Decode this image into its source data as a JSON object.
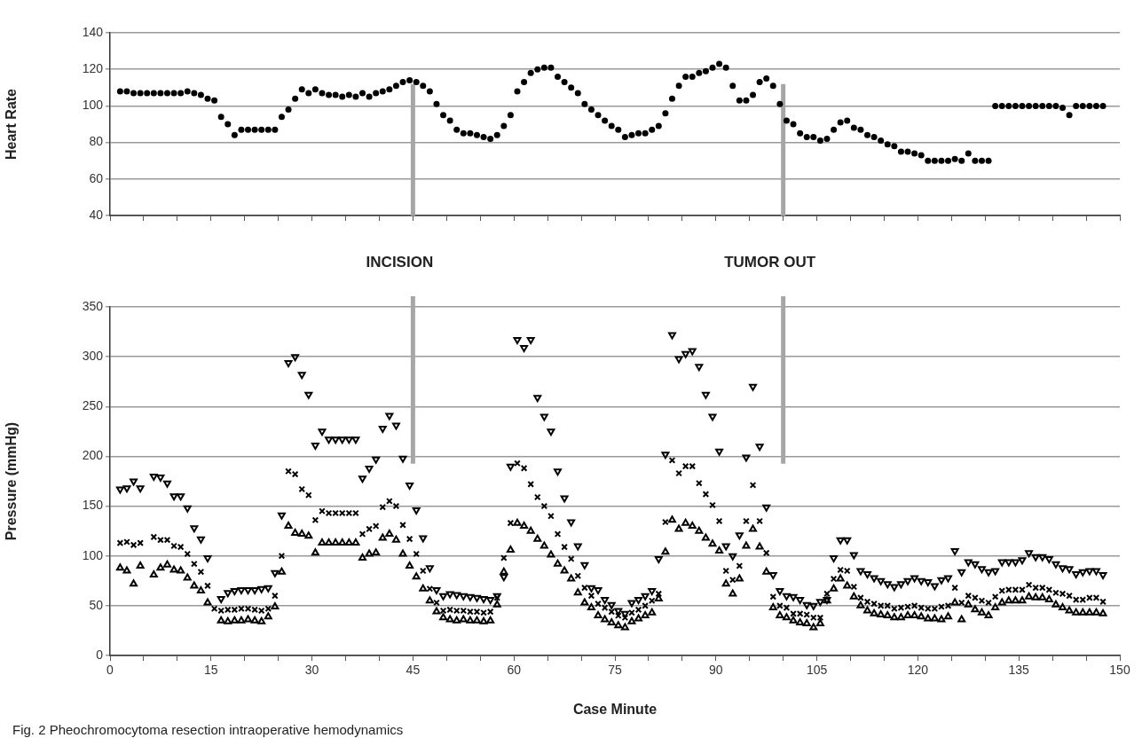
{
  "chart_data": [
    {
      "type": "scatter",
      "ylabel": "Heart Rate",
      "grid": "y",
      "tick_labels": "y",
      "xlim": [
        0,
        150
      ],
      "xticks": [
        0,
        {
          "value": 5,
          "label": null
        },
        {
          "value": 10,
          "label": null
        },
        15,
        {
          "value": 20,
          "label": null
        },
        {
          "value": 25,
          "label": null
        },
        30,
        {
          "value": 35,
          "label": null
        },
        {
          "value": 40,
          "label": null
        },
        45,
        {
          "value": 50,
          "label": null
        },
        {
          "value": 55,
          "label": null
        },
        60,
        {
          "value": 65,
          "label": null
        },
        {
          "value": 70,
          "label": null
        },
        75,
        {
          "value": 80,
          "label": null
        },
        {
          "value": 85,
          "label": null
        },
        90,
        {
          "value": 95,
          "label": null
        },
        {
          "value": 100,
          "label": null
        },
        105,
        {
          "value": 110,
          "label": null
        },
        {
          "value": 115,
          "label": null
        },
        120,
        {
          "value": 125,
          "label": null
        },
        {
          "value": 130,
          "label": null
        },
        135,
        {
          "value": 140,
          "label": null
        },
        {
          "value": 145,
          "label": null
        },
        150
      ],
      "ylim": [
        40,
        140
      ],
      "yticks": [
        40,
        60,
        80,
        100,
        120,
        140
      ],
      "x": [
        1.5,
        2.5,
        3.5,
        4.5,
        5.5,
        6.5,
        7.5,
        8.5,
        9.5,
        10.5,
        11.5,
        12.5,
        13.5,
        14.5,
        15.5,
        16.5,
        17.5,
        18.5,
        19.5,
        20.5,
        21.5,
        22.5,
        23.5,
        24.5,
        25.5,
        26.5,
        27.5,
        28.5,
        29.5,
        30.5,
        31.5,
        32.5,
        33.5,
        34.5,
        35.5,
        36.5,
        37.5,
        38.5,
        39.5,
        40.5,
        41.5,
        42.5,
        43.5,
        44.5,
        45.5,
        46.5,
        47.5,
        48.5,
        49.5,
        50.5,
        51.5,
        52.5,
        53.5,
        54.5,
        55.5,
        56.5,
        57.5,
        58.5,
        59.5,
        60.5,
        61.5,
        62.5,
        63.5,
        64.5,
        65.5,
        66.5,
        67.5,
        68.5,
        69.5,
        70.5,
        71.5,
        72.5,
        73.5,
        74.5,
        75.5,
        76.5,
        77.5,
        78.5,
        79.5,
        80.5,
        81.5,
        82.5,
        83.5,
        84.5,
        85.5,
        86.5,
        87.5,
        88.5,
        89.5,
        90.5,
        91.5,
        92.5,
        93.5,
        94.5,
        95.5,
        96.5,
        97.5,
        98.5,
        99.5,
        100.5,
        101.5,
        102.5,
        103.5,
        104.5,
        105.5,
        106.5,
        107.5,
        108.5,
        109.5,
        110.5,
        111.5,
        112.5,
        113.5,
        114.5,
        115.5,
        116.5,
        117.5,
        118.5,
        119.5,
        120.5,
        121.5,
        122.5,
        123.5,
        124.5,
        125.5,
        126.5,
        127.5,
        128.5,
        129.5,
        130.5,
        131.5,
        132.5,
        133.5,
        134.5,
        135.5,
        136.5,
        137.5,
        138.5,
        139.5,
        140.5,
        141.5,
        142.5,
        143.5,
        144.5,
        145.5,
        146.5,
        147.5
      ],
      "series": [
        {
          "color": "#000000",
          "marker": "circle",
          "values": [
            108,
            108,
            107,
            107,
            107,
            107,
            107,
            107,
            107,
            107,
            108,
            107,
            106,
            104,
            103,
            94,
            90,
            84,
            87,
            87,
            87,
            87,
            87,
            87,
            94,
            98,
            104,
            109,
            107,
            109,
            107,
            106,
            106,
            105,
            106,
            105,
            107,
            105,
            107,
            108,
            109,
            111,
            113,
            114,
            113,
            111,
            108,
            101,
            95,
            92,
            87,
            85,
            85,
            84,
            83,
            82,
            84,
            89,
            95,
            108,
            113,
            118,
            120,
            121,
            121,
            116,
            113,
            110,
            107,
            101,
            98,
            95,
            92,
            89,
            87,
            83,
            84,
            85,
            85,
            87,
            89,
            96,
            104,
            111,
            116,
            116,
            118,
            119,
            121,
            123,
            121,
            111,
            103,
            103,
            106,
            113,
            115,
            111,
            101,
            92,
            90,
            85,
            83,
            83,
            81,
            82,
            87,
            91,
            92,
            88,
            87,
            84,
            83,
            81,
            79,
            78,
            75,
            75,
            74,
            73,
            70,
            70,
            70,
            70,
            71,
            70,
            74,
            70,
            70,
            70,
            100,
            100,
            100,
            100,
            100,
            100,
            100,
            100,
            100,
            100,
            99,
            95,
            100,
            100,
            100,
            100,
            100
          ]
        }
      ],
      "ref_lines": [
        {
          "axis": "x",
          "value": 45,
          "color": "#a6a6a6"
        },
        {
          "axis": "x",
          "value": 100,
          "color": "#a6a6a6"
        }
      ]
    },
    {
      "type": "scatter",
      "xlabel": "Case Minute",
      "ylabel": "Pressure (mmHg)",
      "grid": "y",
      "xlim": [
        0,
        150
      ],
      "xticks": [
        0,
        {
          "value": 5,
          "label": null
        },
        {
          "value": 10,
          "label": null
        },
        15,
        {
          "value": 20,
          "label": null
        },
        {
          "value": 25,
          "label": null
        },
        30,
        {
          "value": 35,
          "label": null
        },
        {
          "value": 40,
          "label": null
        },
        45,
        {
          "value": 50,
          "label": null
        },
        {
          "value": 55,
          "label": null
        },
        60,
        {
          "value": 65,
          "label": null
        },
        {
          "value": 70,
          "label": null
        },
        75,
        {
          "value": 80,
          "label": null
        },
        {
          "value": 85,
          "label": null
        },
        90,
        {
          "value": 95,
          "label": null
        },
        {
          "value": 100,
          "label": null
        },
        105,
        {
          "value": 110,
          "label": null
        },
        {
          "value": 115,
          "label": null
        },
        120,
        {
          "value": 125,
          "label": null
        },
        {
          "value": 130,
          "label": null
        },
        135,
        {
          "value": 140,
          "label": null
        },
        {
          "value": 145,
          "label": null
        },
        150
      ],
      "ylim": [
        0,
        350
      ],
      "yticks": [
        0,
        50,
        100,
        150,
        200,
        250,
        300,
        350
      ],
      "x": [
        1.5,
        2.5,
        3.5,
        4.5,
        5.5,
        6.5,
        7.5,
        8.5,
        9.5,
        10.5,
        11.5,
        12.5,
        13.5,
        14.5,
        15.5,
        16.5,
        17.5,
        18.5,
        19.5,
        20.5,
        21.5,
        22.5,
        23.5,
        24.5,
        25.5,
        26.5,
        27.5,
        28.5,
        29.5,
        30.5,
        31.5,
        32.5,
        33.5,
        34.5,
        35.5,
        36.5,
        37.5,
        38.5,
        39.5,
        40.5,
        41.5,
        42.5,
        43.5,
        44.5,
        45.5,
        46.5,
        47.5,
        48.5,
        49.5,
        50.5,
        51.5,
        52.5,
        53.5,
        54.5,
        55.5,
        56.5,
        57.5,
        58.5,
        59.5,
        60.5,
        61.5,
        62.5,
        63.5,
        64.5,
        65.5,
        66.5,
        67.5,
        68.5,
        69.5,
        70.5,
        71.5,
        72.5,
        73.5,
        74.5,
        75.5,
        76.5,
        77.5,
        78.5,
        79.5,
        80.5,
        81.5,
        82.5,
        83.5,
        84.5,
        85.5,
        86.5,
        87.5,
        88.5,
        89.5,
        90.5,
        91.5,
        92.5,
        93.5,
        94.5,
        95.5,
        96.5,
        97.5,
        98.5,
        99.5,
        100.5,
        101.5,
        102.5,
        103.5,
        104.5,
        105.5,
        106.5,
        107.5,
        108.5,
        109.5,
        110.5,
        111.5,
        112.5,
        113.5,
        114.5,
        115.5,
        116.5,
        117.5,
        118.5,
        119.5,
        120.5,
        121.5,
        122.5,
        123.5,
        124.5,
        125.5,
        126.5,
        127.5,
        128.5,
        129.5,
        130.5,
        131.5,
        132.5,
        133.5,
        134.5,
        135.5,
        136.5,
        137.5,
        138.5,
        139.5,
        140.5,
        141.5,
        142.5,
        143.5,
        144.5,
        145.5,
        146.5,
        147.5
      ],
      "series": [
        {
          "color": "#000000",
          "marker": "triangle-down",
          "values": [
            167,
            168,
            175,
            168,
            null,
            180,
            179,
            173,
            160,
            160,
            148,
            128,
            117,
            98,
            null,
            57,
            63,
            65,
            66,
            66,
            66,
            67,
            68,
            83,
            141,
            294,
            300,
            282,
            262,
            211,
            225,
            217,
            217,
            217,
            217,
            217,
            178,
            188,
            197,
            228,
            241,
            231,
            198,
            171,
            146,
            118,
            88,
            66,
            60,
            62,
            61,
            60,
            59,
            58,
            57,
            56,
            60,
            79,
            190,
            317,
            309,
            317,
            259,
            240,
            225,
            185,
            158,
            134,
            110,
            91,
            68,
            66,
            56,
            51,
            45,
            42,
            53,
            56,
            60,
            65,
            97,
            202,
            322,
            298,
            303,
            306,
            290,
            262,
            240,
            205,
            110,
            100,
            121,
            199,
            270,
            210,
            149,
            81,
            65,
            60,
            59,
            56,
            51,
            50,
            54,
            56,
            98,
            116,
            116,
            101,
            85,
            82,
            78,
            75,
            72,
            69,
            72,
            75,
            78,
            75,
            74,
            70,
            76,
            78,
            105,
            84,
            94,
            92,
            87,
            84,
            85,
            94,
            94,
            94,
            96,
            103,
            99,
            99,
            97,
            92,
            88,
            87,
            82,
            84,
            85,
            85,
            81
          ]
        },
        {
          "color": "#000000",
          "marker": "cross",
          "values": [
            113,
            114,
            111,
            113,
            null,
            119,
            116,
            116,
            110,
            109,
            102,
            92,
            84,
            70,
            47,
            45,
            46,
            46,
            47,
            47,
            46,
            45,
            47,
            60,
            100,
            185,
            182,
            167,
            161,
            136,
            145,
            143,
            143,
            143,
            143,
            143,
            122,
            127,
            130,
            149,
            155,
            150,
            131,
            117,
            102,
            85,
            67,
            53,
            45,
            46,
            45,
            45,
            44,
            44,
            43,
            44,
            58,
            98,
            133,
            193,
            188,
            172,
            159,
            150,
            140,
            122,
            109,
            97,
            80,
            68,
            60,
            52,
            48,
            44,
            40,
            38,
            43,
            46,
            50,
            55,
            62,
            134,
            196,
            183,
            190,
            190,
            173,
            162,
            151,
            135,
            85,
            76,
            90,
            135,
            171,
            135,
            103,
            59,
            50,
            48,
            42,
            42,
            41,
            38,
            38,
            62,
            77,
            86,
            85,
            69,
            58,
            54,
            52,
            50,
            50,
            47,
            48,
            49,
            50,
            48,
            47,
            47,
            49,
            50,
            68,
            53,
            60,
            58,
            55,
            53,
            59,
            65,
            66,
            66,
            66,
            71,
            68,
            68,
            66,
            63,
            62,
            60,
            56,
            56,
            58,
            58,
            54
          ]
        },
        {
          "color": "#000000",
          "marker": "triangle",
          "values": [
            88,
            85,
            72,
            90,
            null,
            81,
            88,
            91,
            86,
            85,
            78,
            70,
            65,
            53,
            null,
            35,
            34,
            35,
            35,
            36,
            35,
            34,
            39,
            49,
            84,
            130,
            123,
            122,
            120,
            103,
            113,
            113,
            113,
            113,
            113,
            113,
            98,
            102,
            103,
            118,
            122,
            116,
            102,
            90,
            79,
            67,
            55,
            44,
            38,
            36,
            35,
            36,
            35,
            35,
            34,
            35,
            51,
            84,
            106,
            133,
            130,
            125,
            117,
            110,
            101,
            92,
            85,
            77,
            63,
            53,
            48,
            40,
            36,
            33,
            30,
            28,
            34,
            37,
            40,
            43,
            57,
            104,
            136,
            127,
            133,
            130,
            125,
            118,
            112,
            105,
            72,
            62,
            77,
            110,
            127,
            109,
            84,
            48,
            40,
            38,
            35,
            33,
            32,
            28,
            32,
            55,
            67,
            77,
            70,
            59,
            50,
            45,
            42,
            41,
            40,
            38,
            38,
            40,
            40,
            39,
            37,
            37,
            36,
            39,
            53,
            36,
            51,
            46,
            43,
            40,
            48,
            53,
            55,
            55,
            55,
            59,
            58,
            58,
            56,
            51,
            48,
            45,
            43,
            43,
            43,
            43,
            42
          ]
        }
      ],
      "ref_lines": [
        {
          "axis": "x",
          "value": 45,
          "label": "INCISION",
          "color": "#a6a6a6"
        },
        {
          "axis": "x",
          "value": 100,
          "label": "TUMOR OUT",
          "color": "#a6a6a6"
        }
      ],
      "annotations": [
        "Fig. 2  Pheochromocytoma resection intraoperative hemodynamics"
      ]
    }
  ]
}
